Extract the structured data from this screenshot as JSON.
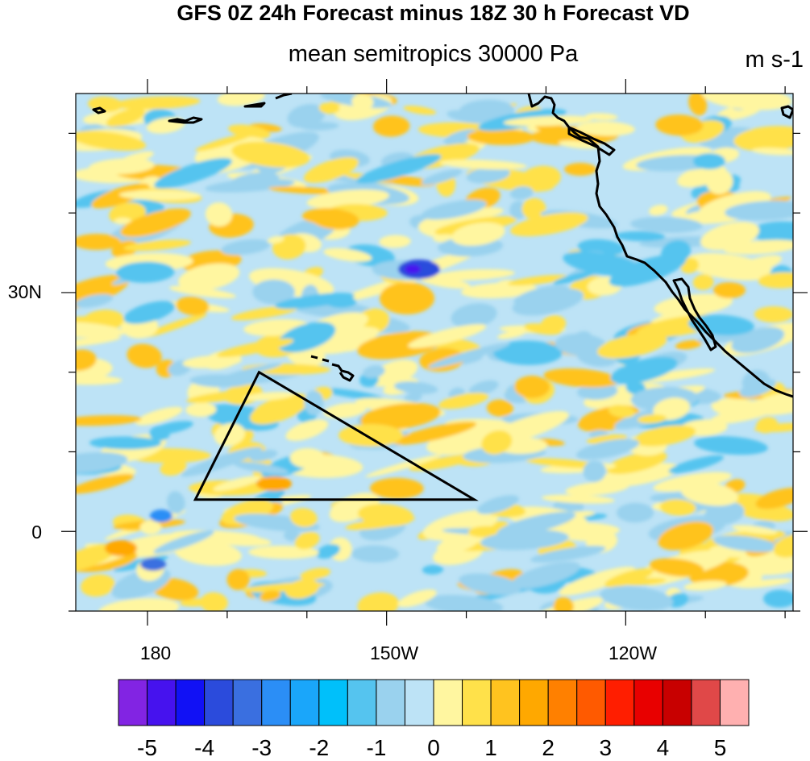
{
  "title": "GFS 0Z 24h Forecast minus 18Z 30 h Forecast VD",
  "subtitle": "mean semitropics 30000 Pa",
  "units": "m s-1",
  "map": {
    "lon_range": [
      -189,
      -99
    ],
    "lat_range": [
      -10,
      55
    ],
    "lon_ticks": [
      {
        "lon": 180,
        "label": "180"
      },
      {
        "lon": -150,
        "label": "150W"
      },
      {
        "lon": -120,
        "label": "120W"
      }
    ],
    "lat_ticks": [
      {
        "lat": 30,
        "label": "30N"
      },
      {
        "lat": 0,
        "label": "0"
      }
    ],
    "highlight_triangle": [
      {
        "lon": -166,
        "lat": 20
      },
      {
        "lon": -174,
        "lat": 4
      },
      {
        "lon": -139,
        "lat": 4
      }
    ]
  },
  "colorbar": {
    "labels": [
      "-5",
      "-4",
      "-3",
      "-2",
      "-1",
      "0",
      "1",
      "2",
      "3",
      "4",
      "5"
    ],
    "colors": [
      "#8224e3",
      "#4612ee",
      "#1111f5",
      "#2b4bdc",
      "#3a6fe0",
      "#2b8ef6",
      "#1aa6fa",
      "#00c0fa",
      "#55c4ef",
      "#9ad2ee",
      "#bde3f6",
      "#fff6a0",
      "#ffe14a",
      "#ffc31f",
      "#ffa800",
      "#ff8000",
      "#ff5a00",
      "#ff1e00",
      "#e80000",
      "#c80000",
      "#e04848",
      "#ffb0b0"
    ]
  }
}
